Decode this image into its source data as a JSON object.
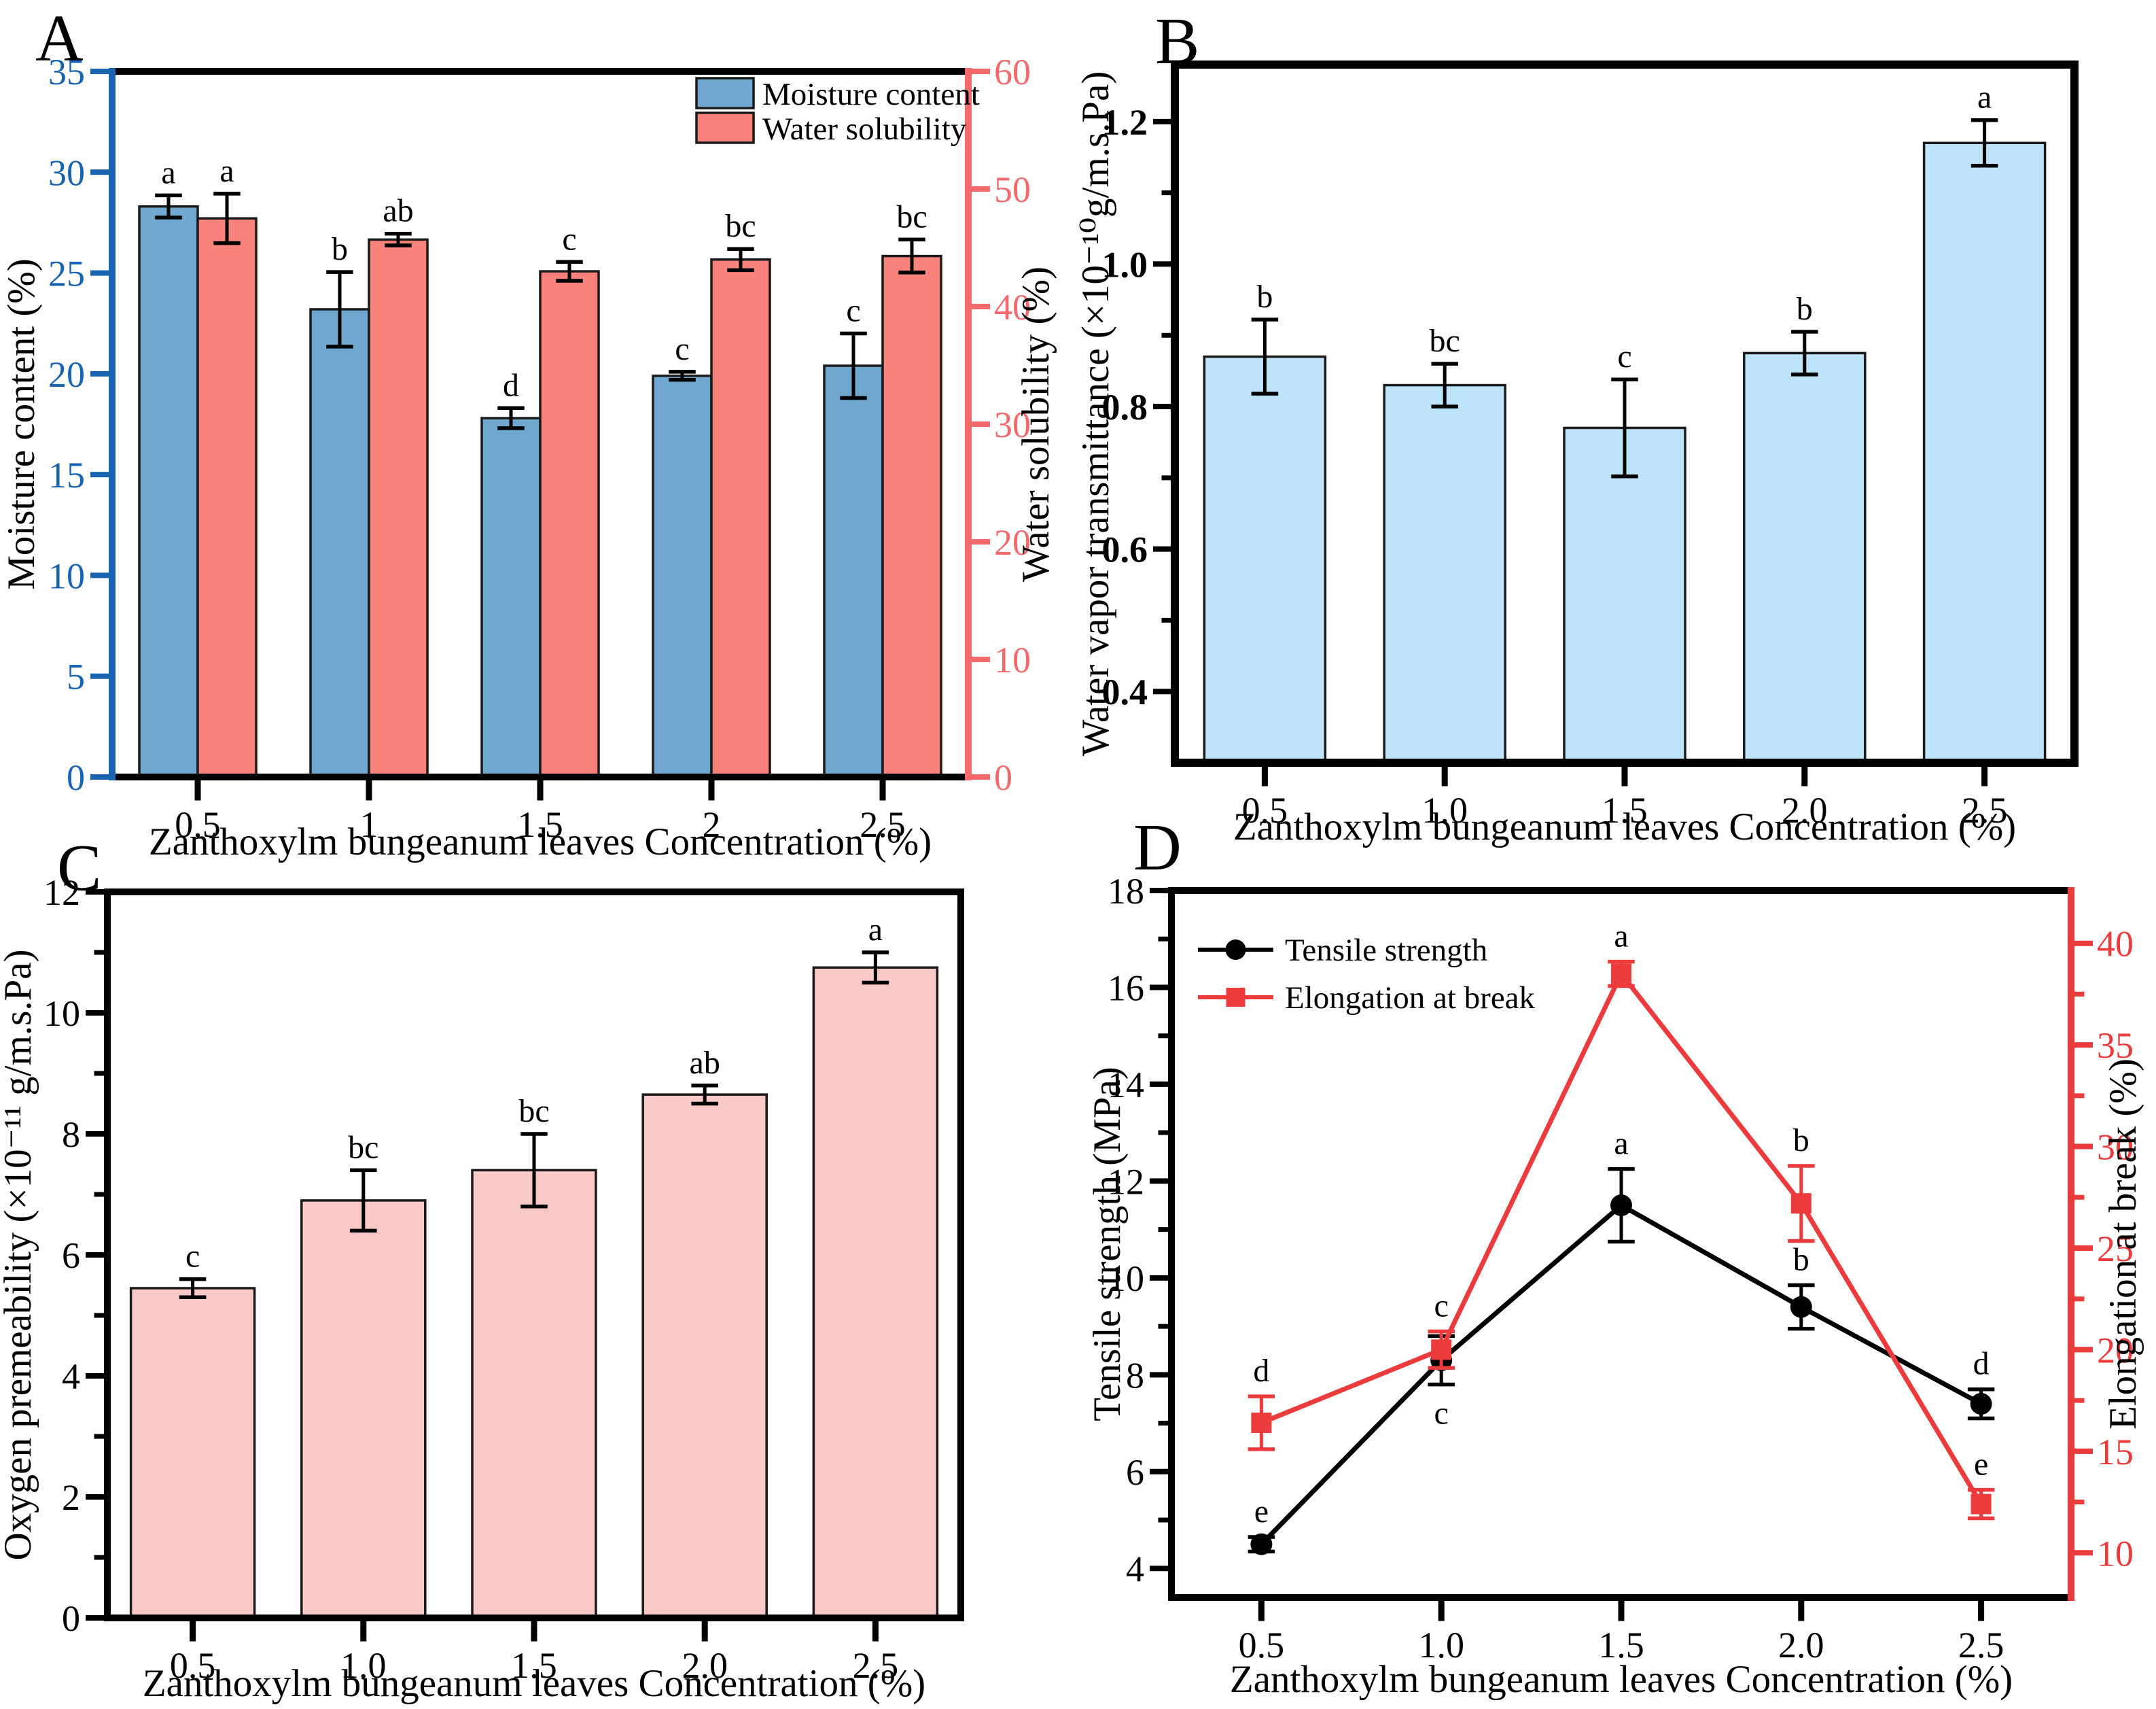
{
  "figure": {
    "background": "#ffffff",
    "panel_letters": [
      "A",
      "B",
      "C",
      "D"
    ]
  },
  "chart_data": [
    {
      "panel": "A",
      "type": "bar",
      "categories": [
        "0.5",
        "1",
        "1.5",
        "2",
        "2.5"
      ],
      "xlabel": "Zanthoxylm bungeanum leaves Concentration (%)",
      "left_axis": {
        "label": "Moisture content (%)",
        "min": 0,
        "max": 35,
        "ticks": [
          0,
          5,
          10,
          15,
          20,
          25,
          30,
          35
        ],
        "tick_labels": [
          "0",
          "5",
          "10",
          "15",
          "20",
          "25",
          "30",
          "35"
        ],
        "color": "#1A63B0"
      },
      "right_axis": {
        "label": "Water solubility (%)",
        "min": 0,
        "max": 60,
        "ticks": [
          0,
          10,
          20,
          30,
          40,
          50,
          60
        ],
        "tick_labels": [
          "0",
          "10",
          "20",
          "30",
          "40",
          "50",
          "60"
        ],
        "color": "#F4696C"
      },
      "series": [
        {
          "name": "Moisture content",
          "axis": "left",
          "color": "#6FA7CE",
          "values": [
            28.3,
            23.2,
            17.8,
            19.9,
            20.4
          ],
          "errors": [
            0.55,
            1.85,
            0.5,
            0.2,
            1.6
          ],
          "letters": [
            "a",
            "b",
            "d",
            "c",
            "c"
          ]
        },
        {
          "name": "Water solubility",
          "axis": "right",
          "color": "#F8837D",
          "values": [
            47.5,
            45.7,
            43.0,
            44.0,
            44.3
          ],
          "errors": [
            2.1,
            0.5,
            0.8,
            0.9,
            1.4
          ],
          "letters": [
            "a",
            "ab",
            "c",
            "bc",
            "bc"
          ]
        }
      ],
      "legend": {
        "labels": [
          "Moisture content",
          "Water solubility"
        ]
      }
    },
    {
      "panel": "B",
      "type": "bar",
      "categories": [
        "0.5",
        "1.0",
        "1.5",
        "2.0",
        "2.5"
      ],
      "xlabel": "Zanthoxylm bungeanum leaves Concentration (%)",
      "left_axis": {
        "label": "Water vapor transmittance (×10⁻¹⁰g/m.s.Pa)",
        "min": 0.3,
        "max": 1.28,
        "ticks": [
          0.4,
          0.6,
          0.8,
          1.0,
          1.2
        ],
        "tick_labels": [
          "0.4",
          "0.6",
          "0.8",
          "1.0",
          "1.2"
        ],
        "minor_ticks": [
          0.5,
          0.7,
          0.9,
          1.1
        ],
        "color": "#000000",
        "bold_ticks": true
      },
      "series": [
        {
          "name": "Water vapor transmittance",
          "axis": "left",
          "color": "#BDE4F9",
          "values": [
            0.87,
            0.83,
            0.77,
            0.875,
            1.17
          ],
          "errors": [
            0.052,
            0.03,
            0.068,
            0.03,
            0.032
          ],
          "letters": [
            "b",
            "bc",
            "c",
            "b",
            "a"
          ]
        }
      ]
    },
    {
      "panel": "C",
      "type": "bar",
      "categories": [
        "0.5",
        "1.0",
        "1.5",
        "2.0",
        "2.5"
      ],
      "xlabel": "Zanthoxylm bungeanum leaves Concentration (%)",
      "left_axis": {
        "label": "Oxygen premeability (×10⁻¹¹ g/m.s.Pa)",
        "min": 0,
        "max": 12,
        "ticks": [
          0,
          2,
          4,
          6,
          8,
          10,
          12
        ],
        "tick_labels": [
          "0",
          "2",
          "4",
          "6",
          "8",
          "10",
          "12"
        ],
        "minor_ticks": [
          1,
          3,
          5,
          7,
          9,
          11
        ],
        "color": "#000000"
      },
      "series": [
        {
          "name": "Oxygen premeability",
          "axis": "left",
          "color": "#F9C9C8",
          "values": [
            5.45,
            6.9,
            7.4,
            8.65,
            10.75
          ],
          "errors": [
            0.15,
            0.5,
            0.6,
            0.15,
            0.25
          ],
          "letters": [
            "c",
            "bc",
            "bc",
            "ab",
            "a"
          ]
        }
      ]
    },
    {
      "panel": "D",
      "type": "line",
      "categories": [
        "0.5",
        "1.0",
        "1.5",
        "2.0",
        "2.5"
      ],
      "xlabel": "Zanthoxylm bungeanum leaves Concentration (%)",
      "left_axis": {
        "label": "Tensile strength (MPa)",
        "min": 3.4,
        "max": 18,
        "ticks": [
          4,
          6,
          8,
          10,
          12,
          14,
          16,
          18
        ],
        "tick_labels": [
          "4",
          "6",
          "8",
          "10",
          "12",
          "14",
          "16",
          "18"
        ],
        "minor_ticks": [
          5,
          7,
          9,
          11,
          13,
          15,
          17
        ],
        "color": "#000000"
      },
      "right_axis": {
        "label": "Elongation at break (%)",
        "min": 7.8,
        "max": 42.6,
        "ticks": [
          10,
          15,
          20,
          25,
          30,
          35,
          40
        ],
        "tick_labels": [
          "10",
          "15",
          "20",
          "25",
          "30",
          "35",
          "40"
        ],
        "minor_ticks": [
          12.5,
          17.5,
          22.5,
          27.5,
          32.5,
          37.5
        ],
        "color": "#EC3B3D"
      },
      "series": [
        {
          "name": "Tensile strength",
          "axis": "left",
          "color": "#000000",
          "marker": "circle",
          "values": [
            4.5,
            8.3,
            11.5,
            9.4,
            7.4
          ],
          "errors": [
            0.15,
            0.5,
            0.75,
            0.45,
            0.3
          ],
          "letters": [
            "e",
            "c",
            "a",
            "b",
            "d"
          ],
          "letter_side": [
            "above",
            "below",
            "above",
            "above",
            "above"
          ]
        },
        {
          "name": "Elongation at break",
          "axis": "right",
          "color": "#EC3B3D",
          "marker": "square",
          "values": [
            16.4,
            20.0,
            38.5,
            27.2,
            12.4
          ],
          "errors": [
            1.3,
            0.9,
            0.6,
            1.85,
            0.7
          ],
          "letters": [
            "d",
            "c",
            "a",
            "b",
            "e"
          ],
          "letter_side": [
            "above",
            "above",
            "above",
            "above",
            "above"
          ]
        }
      ],
      "legend": {
        "labels": [
          "Tensile strength",
          "Elongation at break"
        ]
      }
    }
  ]
}
